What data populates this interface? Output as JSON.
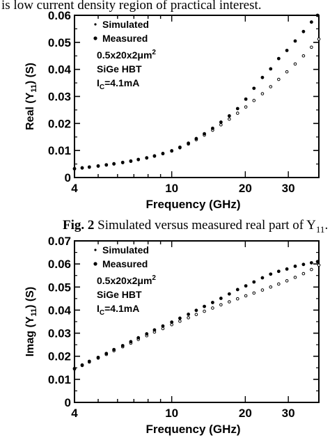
{
  "top_text": "is low current density region of practical interest.",
  "caption": {
    "label": "Fig. 2",
    "text": " Simulated versus measured real part of Y",
    "subscript": "11",
    "period": "."
  },
  "chart_data": [
    {
      "type": "scatter",
      "xlabel": "Frequency (GHz)",
      "ylabel_base": "Real (Y",
      "ylabel_sub": "11",
      "ylabel_end": ") (S)",
      "x_scale": "log",
      "xlim": [
        4,
        40
      ],
      "ylim": [
        0,
        0.06
      ],
      "x_ticks": [
        4,
        10,
        20,
        30
      ],
      "y_ticks": [
        0,
        0.01,
        0.02,
        0.03,
        0.04,
        0.05,
        0.06
      ],
      "y_tick_labels": [
        "0",
        "0.01",
        "0.02",
        "0.03",
        "0.04",
        "0.05",
        "0.06"
      ],
      "legend": {
        "placement": "top-left",
        "entries": [
          "Simulated",
          "Measured"
        ]
      },
      "annotation_lines": [
        "0.5x20x2μm",
        "SiGe HBT",
        "I"
      ],
      "annotation_dim_sup": "2",
      "annotation_current_sub": "C",
      "annotation_current_value": "=4.1mA",
      "series": [
        {
          "name": "Simulated",
          "marker": "open-small",
          "x": [
            4.0,
            4.3,
            4.6,
            5.0,
            5.4,
            5.8,
            6.3,
            6.8,
            7.3,
            7.9,
            8.5,
            9.2,
            10.0,
            10.8,
            11.7,
            12.6,
            13.6,
            14.7,
            15.9,
            17.2,
            18.6,
            20.1,
            21.7,
            23.5,
            25.4,
            27.4,
            29.6,
            32.0,
            34.6,
            37.3,
            40.0
          ],
          "y": [
            0.0032,
            0.0035,
            0.0038,
            0.0042,
            0.0046,
            0.005,
            0.0055,
            0.006,
            0.0066,
            0.0072,
            0.0079,
            0.0088,
            0.0098,
            0.011,
            0.0124,
            0.014,
            0.0157,
            0.0175,
            0.0195,
            0.0216,
            0.0238,
            0.0261,
            0.0285,
            0.031,
            0.0336,
            0.0363,
            0.0391,
            0.042,
            0.045,
            0.0482,
            0.0512
          ]
        },
        {
          "name": "Measured",
          "marker": "filled",
          "x": [
            4.0,
            4.3,
            4.6,
            5.0,
            5.4,
            5.8,
            6.3,
            6.8,
            7.3,
            7.9,
            8.5,
            9.2,
            10.0,
            10.8,
            11.7,
            12.6,
            13.6,
            14.7,
            15.9,
            17.2,
            18.6,
            20.1,
            21.7,
            23.5,
            25.4,
            27.4,
            29.6,
            32.0,
            34.6,
            37.3,
            39.5
          ],
          "y": [
            0.0033,
            0.0036,
            0.0039,
            0.0043,
            0.0047,
            0.0051,
            0.0056,
            0.0061,
            0.0067,
            0.0073,
            0.008,
            0.0089,
            0.0099,
            0.0112,
            0.0127,
            0.0144,
            0.0162,
            0.0182,
            0.0205,
            0.0228,
            0.0255,
            0.029,
            0.033,
            0.037,
            0.0402,
            0.044,
            0.047,
            0.0505,
            0.054,
            0.0575,
            0.06
          ]
        }
      ]
    },
    {
      "type": "scatter",
      "xlabel": "Frequency (GHz)",
      "ylabel_base": "Imag (Y",
      "ylabel_sub": "11",
      "ylabel_end": ") (S)",
      "x_scale": "log",
      "xlim": [
        4,
        40
      ],
      "ylim": [
        0,
        0.07
      ],
      "x_ticks": [
        4,
        10,
        20,
        30
      ],
      "y_ticks": [
        0,
        0.01,
        0.02,
        0.03,
        0.04,
        0.05,
        0.06,
        0.07
      ],
      "y_tick_labels": [
        "0",
        "0.01",
        "0.02",
        "0.03",
        "0.04",
        "0.05",
        "0.06",
        "0.07"
      ],
      "legend": {
        "placement": "top-left",
        "entries": [
          "Simulated",
          "Measured"
        ]
      },
      "annotation_lines": [
        "0.5x20x2μm",
        "SiGe HBT",
        "I"
      ],
      "annotation_dim_sup": "2",
      "annotation_current_sub": "C",
      "annotation_current_value": "=4.1mA",
      "series": [
        {
          "name": "Simulated",
          "marker": "open-small",
          "x": [
            4.0,
            4.3,
            4.6,
            5.0,
            5.4,
            5.8,
            6.3,
            6.8,
            7.3,
            7.9,
            8.5,
            9.2,
            10.0,
            10.8,
            11.7,
            12.6,
            13.6,
            14.7,
            15.9,
            17.2,
            18.6,
            20.1,
            21.7,
            23.5,
            25.4,
            27.4,
            29.6,
            32.0,
            34.6,
            37.3,
            40.0
          ],
          "y": [
            0.0145,
            0.016,
            0.0175,
            0.0192,
            0.0208,
            0.0224,
            0.0241,
            0.0257,
            0.0273,
            0.0289,
            0.0305,
            0.032,
            0.0337,
            0.0352,
            0.0367,
            0.0381,
            0.0395,
            0.0409,
            0.0423,
            0.0436,
            0.0449,
            0.0462,
            0.0474,
            0.0487,
            0.05,
            0.0513,
            0.0527,
            0.0542,
            0.0558,
            0.0576,
            0.0595
          ]
        },
        {
          "name": "Measured",
          "marker": "filled",
          "x": [
            4.0,
            4.3,
            4.6,
            5.0,
            5.4,
            5.8,
            6.3,
            6.8,
            7.3,
            7.9,
            8.5,
            9.2,
            10.0,
            10.8,
            11.7,
            12.6,
            13.6,
            14.7,
            15.9,
            17.2,
            18.6,
            20.1,
            21.7,
            23.5,
            25.4,
            27.4,
            29.6,
            32.0,
            34.6,
            37.3,
            39.5
          ],
          "y": [
            0.0147,
            0.0162,
            0.0178,
            0.0195,
            0.0212,
            0.0229,
            0.0246,
            0.0263,
            0.028,
            0.0297,
            0.0314,
            0.0331,
            0.0348,
            0.0365,
            0.0382,
            0.0399,
            0.0416,
            0.0433,
            0.0451,
            0.047,
            0.0489,
            0.0505,
            0.0522,
            0.054,
            0.0556,
            0.0568,
            0.0578,
            0.059,
            0.0598,
            0.0605,
            0.061
          ]
        }
      ]
    }
  ]
}
